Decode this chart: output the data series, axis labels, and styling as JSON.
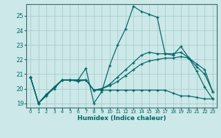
{
  "xlabel": "Humidex (Indice chaleur)",
  "bg_color": "#cce8e8",
  "grid_color": "#aacccc",
  "line_color": "#006666",
  "spine_color": "#336666",
  "xlim": [
    -0.5,
    23.5
  ],
  "ylim": [
    18.7,
    25.8
  ],
  "yticks": [
    19,
    20,
    21,
    22,
    23,
    24,
    25
  ],
  "xticks": [
    0,
    1,
    2,
    3,
    4,
    5,
    6,
    7,
    8,
    9,
    10,
    11,
    12,
    13,
    14,
    15,
    16,
    17,
    18,
    19,
    20,
    21,
    22,
    23
  ],
  "lines": [
    {
      "x": [
        0,
        1,
        2,
        3,
        4,
        5,
        6,
        7,
        8,
        9,
        10,
        11,
        12,
        13,
        14,
        15,
        16,
        17,
        18,
        19,
        20,
        21,
        22,
        23
      ],
      "y": [
        20.8,
        19.0,
        19.5,
        20.1,
        20.6,
        20.6,
        20.6,
        21.4,
        19.0,
        19.8,
        21.6,
        23.0,
        24.1,
        25.65,
        25.3,
        25.1,
        24.9,
        22.4,
        22.3,
        22.9,
        22.1,
        21.2,
        20.1,
        19.3
      ]
    },
    {
      "x": [
        0,
        1,
        2,
        3,
        4,
        5,
        6,
        7,
        8,
        9,
        10,
        11,
        12,
        13,
        14,
        15,
        16,
        17,
        18,
        19,
        20,
        21,
        22,
        23
      ],
      "y": [
        20.8,
        19.0,
        19.6,
        20.1,
        20.6,
        20.6,
        20.6,
        20.6,
        19.9,
        20.0,
        20.3,
        20.8,
        21.3,
        21.8,
        22.3,
        22.5,
        22.4,
        22.4,
        22.4,
        22.5,
        22.1,
        21.5,
        21.0,
        19.8
      ]
    },
    {
      "x": [
        0,
        1,
        2,
        3,
        4,
        5,
        6,
        7,
        8,
        9,
        10,
        11,
        12,
        13,
        14,
        15,
        16,
        17,
        18,
        19,
        20,
        21,
        22,
        23
      ],
      "y": [
        20.8,
        19.0,
        19.6,
        20.0,
        20.6,
        20.6,
        20.5,
        20.6,
        19.9,
        19.9,
        19.9,
        19.9,
        19.9,
        19.9,
        19.9,
        19.9,
        19.9,
        19.9,
        19.7,
        19.5,
        19.5,
        19.4,
        19.3,
        19.3
      ]
    },
    {
      "x": [
        0,
        1,
        2,
        3,
        4,
        5,
        6,
        7,
        8,
        9,
        10,
        11,
        12,
        13,
        14,
        15,
        16,
        17,
        18,
        19,
        20,
        21,
        22,
        23
      ],
      "y": [
        20.8,
        19.0,
        19.6,
        20.1,
        20.6,
        20.6,
        20.6,
        20.6,
        19.9,
        20.0,
        20.2,
        20.5,
        20.9,
        21.3,
        21.7,
        21.9,
        22.0,
        22.1,
        22.1,
        22.2,
        22.1,
        21.7,
        21.3,
        19.8
      ]
    }
  ]
}
